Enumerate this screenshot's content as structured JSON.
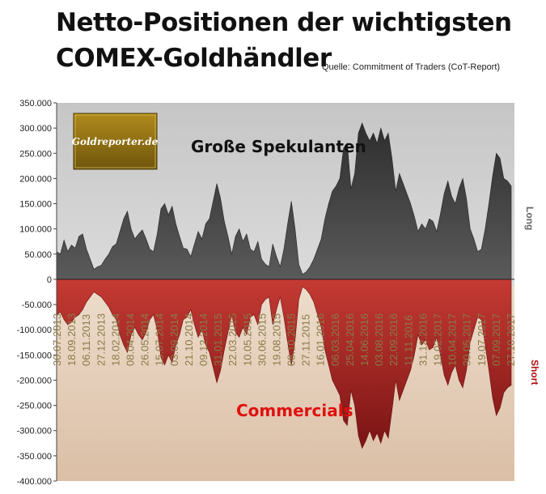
{
  "title": {
    "line1": "Netto-Positionen der wichtigsten",
    "line2": "COMEX-Goldhändler"
  },
  "source": "Quelle: Commitment of Traders (CoT-Report)",
  "logo": {
    "text": "Goldreporter.de",
    "color": "#8a6d12"
  },
  "chart_data": {
    "type": "area",
    "ylim": [
      -400000,
      350000
    ],
    "yticks": [
      350000,
      300000,
      250000,
      200000,
      150000,
      100000,
      50000,
      0,
      -50000,
      -100000,
      -150000,
      -200000,
      -250000,
      -300000,
      -350000,
      -400000
    ],
    "ytick_labels": [
      "350.000",
      "300.000",
      "250.000",
      "200.000",
      "150.000",
      "100.000",
      "50.000",
      "0",
      "-50.000",
      "-100.000",
      "-150.000",
      "-200.000",
      "-250.000",
      "-300.000",
      "-350.000",
      "-400.000"
    ],
    "x_labels": [
      "30.07.2013",
      "18.09.2013",
      "06.11.2013",
      "27.12.2013",
      "18.02.2014",
      "08.04.2014",
      "26.05.2014",
      "15.07.2014",
      "03.09.2014",
      "21.10.2014",
      "09.12.2014",
      "31.01.2015",
      "22.03.2015",
      "10.05.2015",
      "30.06.2015",
      "19.08.2015",
      "08.10.2015",
      "27.11.2015",
      "16.01.2016",
      "06.03.2016",
      "25.04.2016",
      "14.06.2016",
      "03.08.2016",
      "22.09.2016",
      "11.11.2016",
      "31.12.2016",
      "19.02.2017",
      "10.04.2017",
      "30.05.2017",
      "19.07.2017",
      "07.09.2017",
      "27.10.2017"
    ],
    "series": [
      {
        "name": "Große Spekulanten",
        "side_label": "Long",
        "color": "#3c3c3c",
        "values": [
          55000,
          50000,
          78000,
          55000,
          68000,
          62000,
          85000,
          90000,
          60000,
          40000,
          20000,
          25000,
          28000,
          40000,
          50000,
          65000,
          70000,
          95000,
          120000,
          135000,
          100000,
          80000,
          90000,
          98000,
          80000,
          60000,
          55000,
          90000,
          140000,
          150000,
          128000,
          145000,
          110000,
          85000,
          62000,
          60000,
          45000,
          70000,
          95000,
          80000,
          110000,
          120000,
          155000,
          190000,
          160000,
          115000,
          85000,
          50000,
          85000,
          100000,
          75000,
          90000,
          60000,
          55000,
          75000,
          40000,
          30000,
          25000,
          70000,
          45000,
          25000,
          60000,
          110000,
          155000,
          100000,
          30000,
          10000,
          15000,
          25000,
          40000,
          60000,
          80000,
          120000,
          150000,
          175000,
          185000,
          200000,
          260000,
          270000,
          180000,
          210000,
          290000,
          310000,
          290000,
          275000,
          290000,
          270000,
          300000,
          275000,
          290000,
          240000,
          175000,
          210000,
          190000,
          170000,
          150000,
          125000,
          95000,
          110000,
          100000,
          120000,
          115000,
          95000,
          130000,
          170000,
          195000,
          165000,
          150000,
          180000,
          200000,
          160000,
          100000,
          80000,
          55000,
          60000,
          100000,
          150000,
          205000,
          250000,
          240000,
          200000,
          195000,
          185000
        ]
      },
      {
        "name": "Commercials",
        "side_label": "Short",
        "color": "#a62222",
        "values": [
          -70000,
          -65000,
          -80000,
          -90000,
          -85000,
          -75000,
          -70000,
          -60000,
          -45000,
          -35000,
          -25000,
          -30000,
          -35000,
          -45000,
          -55000,
          -70000,
          -80000,
          -110000,
          -130000,
          -145000,
          -110000,
          -95000,
          -110000,
          -120000,
          -105000,
          -80000,
          -70000,
          -100000,
          -155000,
          -170000,
          -150000,
          -165000,
          -130000,
          -110000,
          -80000,
          -75000,
          -60000,
          -90000,
          -115000,
          -100000,
          -130000,
          -145000,
          -175000,
          -205000,
          -180000,
          -140000,
          -105000,
          -70000,
          -105000,
          -115000,
          -95000,
          -110000,
          -75000,
          -70000,
          -90000,
          -50000,
          -40000,
          -35000,
          -90000,
          -60000,
          -35000,
          -75000,
          -125000,
          -170000,
          -120000,
          -40000,
          -15000,
          -20000,
          -30000,
          -45000,
          -70000,
          -95000,
          -140000,
          -170000,
          -200000,
          -215000,
          -230000,
          -280000,
          -290000,
          -220000,
          -250000,
          -310000,
          -335000,
          -320000,
          -300000,
          -320000,
          -305000,
          -325000,
          -300000,
          -315000,
          -260000,
          -200000,
          -240000,
          -220000,
          -200000,
          -180000,
          -150000,
          -110000,
          -130000,
          -120000,
          -140000,
          -135000,
          -115000,
          -150000,
          -190000,
          -210000,
          -185000,
          -170000,
          -200000,
          -215000,
          -180000,
          -125000,
          -100000,
          -75000,
          -80000,
          -130000,
          -180000,
          -235000,
          -270000,
          -255000,
          -225000,
          -215000,
          -210000
        ]
      }
    ],
    "annotations": [
      "Große Spekulanten",
      "Commercials"
    ],
    "legend": "none",
    "grid": false
  }
}
